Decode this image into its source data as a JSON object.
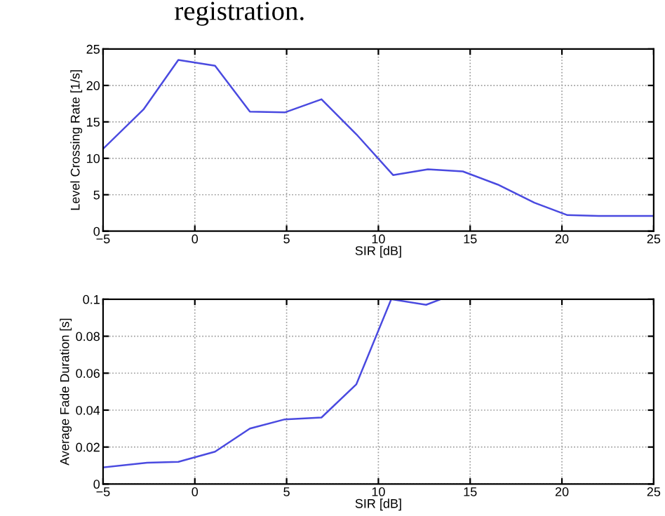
{
  "chart_data": [
    {
      "type": "line",
      "annotations": [
        "registration."
      ],
      "xlabel": "SIR [dB]",
      "ylabel": "Level Crossing Rate [1/s]",
      "x": [
        -5,
        -2.8,
        -0.9,
        1.1,
        3.0,
        4.9,
        6.9,
        8.8,
        10.8,
        12.7,
        14.6,
        16.5,
        18.5,
        20.3,
        22,
        25
      ],
      "series": [
        {
          "color": "#4a4ae0",
          "values": [
            11.3,
            16.7,
            23.5,
            22.7,
            16.4,
            16.3,
            18.1,
            13.3,
            7.7,
            8.5,
            8.2,
            6.4,
            3.9,
            2.2,
            2.1,
            2.1
          ]
        }
      ],
      "xlim": [
        -5,
        25
      ],
      "xticks": [
        {
          "value": -5,
          "label": "−5"
        },
        0,
        5,
        10,
        15,
        20,
        25
      ],
      "ylim": [
        0,
        25
      ],
      "yticks": [
        0,
        5,
        10,
        15,
        20,
        25
      ],
      "grid": true
    },
    {
      "type": "line",
      "xlabel": "SIR [dB]",
      "ylabel": "Average Fade Duration [s]",
      "x": [
        -5,
        -2.6,
        -0.9,
        1.1,
        3.0,
        4.9,
        6.9,
        8.8,
        10.7,
        12.6,
        13.4
      ],
      "series": [
        {
          "color": "#4a4ae0",
          "values": [
            0.009,
            0.0115,
            0.012,
            0.0175,
            0.03,
            0.035,
            0.036,
            0.054,
            0.1,
            0.097,
            0.1
          ]
        }
      ],
      "xlim": [
        -5,
        25
      ],
      "xticks": [
        {
          "value": -5,
          "label": "−5"
        },
        0,
        5,
        10,
        15,
        20,
        25
      ],
      "ylim": [
        0,
        0.1
      ],
      "yticks": [
        0,
        0.02,
        0.04,
        0.06,
        0.08,
        0.1
      ],
      "grid": true
    }
  ]
}
